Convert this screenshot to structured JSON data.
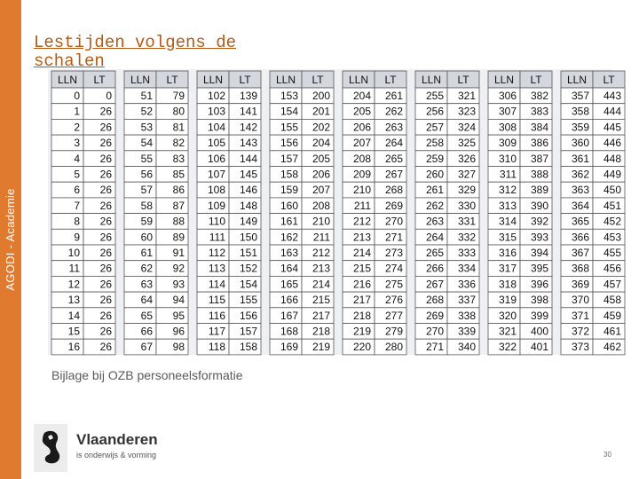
{
  "sidebar": {
    "text": "AGODI - Academie"
  },
  "title": "Lestijden volgens de schalen",
  "table": {
    "header": [
      "LLN",
      "LT"
    ],
    "blocks": [
      [
        [
          0,
          0
        ],
        [
          1,
          26
        ],
        [
          2,
          26
        ],
        [
          3,
          26
        ],
        [
          4,
          26
        ],
        [
          5,
          26
        ],
        [
          6,
          26
        ],
        [
          7,
          26
        ],
        [
          8,
          26
        ],
        [
          9,
          26
        ],
        [
          10,
          26
        ],
        [
          11,
          26
        ],
        [
          12,
          26
        ],
        [
          13,
          26
        ],
        [
          14,
          26
        ],
        [
          15,
          26
        ],
        [
          16,
          26
        ]
      ],
      [
        [
          51,
          79
        ],
        [
          52,
          80
        ],
        [
          53,
          81
        ],
        [
          54,
          82
        ],
        [
          55,
          83
        ],
        [
          56,
          85
        ],
        [
          57,
          86
        ],
        [
          58,
          87
        ],
        [
          59,
          88
        ],
        [
          60,
          89
        ],
        [
          61,
          91
        ],
        [
          62,
          92
        ],
        [
          63,
          93
        ],
        [
          64,
          94
        ],
        [
          65,
          95
        ],
        [
          66,
          96
        ],
        [
          67,
          98
        ]
      ],
      [
        [
          102,
          139
        ],
        [
          103,
          141
        ],
        [
          104,
          142
        ],
        [
          105,
          143
        ],
        [
          106,
          144
        ],
        [
          107,
          145
        ],
        [
          108,
          146
        ],
        [
          109,
          148
        ],
        [
          110,
          149
        ],
        [
          111,
          150
        ],
        [
          112,
          151
        ],
        [
          113,
          152
        ],
        [
          114,
          154
        ],
        [
          115,
          155
        ],
        [
          116,
          156
        ],
        [
          117,
          157
        ],
        [
          118,
          158
        ]
      ],
      [
        [
          153,
          200
        ],
        [
          154,
          201
        ],
        [
          155,
          202
        ],
        [
          156,
          204
        ],
        [
          157,
          205
        ],
        [
          158,
          206
        ],
        [
          159,
          207
        ],
        [
          160,
          208
        ],
        [
          161,
          210
        ],
        [
          162,
          211
        ],
        [
          163,
          212
        ],
        [
          164,
          213
        ],
        [
          165,
          214
        ],
        [
          166,
          215
        ],
        [
          167,
          217
        ],
        [
          168,
          218
        ],
        [
          169,
          219
        ]
      ],
      [
        [
          204,
          261
        ],
        [
          205,
          262
        ],
        [
          206,
          263
        ],
        [
          207,
          264
        ],
        [
          208,
          265
        ],
        [
          209,
          267
        ],
        [
          210,
          268
        ],
        [
          211,
          269
        ],
        [
          212,
          270
        ],
        [
          213,
          271
        ],
        [
          214,
          273
        ],
        [
          215,
          274
        ],
        [
          216,
          275
        ],
        [
          217,
          276
        ],
        [
          218,
          277
        ],
        [
          219,
          279
        ],
        [
          220,
          280
        ]
      ],
      [
        [
          255,
          321
        ],
        [
          256,
          323
        ],
        [
          257,
          324
        ],
        [
          258,
          325
        ],
        [
          259,
          326
        ],
        [
          260,
          327
        ],
        [
          261,
          329
        ],
        [
          262,
          330
        ],
        [
          263,
          331
        ],
        [
          264,
          332
        ],
        [
          265,
          333
        ],
        [
          266,
          334
        ],
        [
          267,
          336
        ],
        [
          268,
          337
        ],
        [
          269,
          338
        ],
        [
          270,
          339
        ],
        [
          271,
          340
        ]
      ],
      [
        [
          306,
          382
        ],
        [
          307,
          383
        ],
        [
          308,
          384
        ],
        [
          309,
          386
        ],
        [
          310,
          387
        ],
        [
          311,
          388
        ],
        [
          312,
          389
        ],
        [
          313,
          390
        ],
        [
          314,
          392
        ],
        [
          315,
          393
        ],
        [
          316,
          394
        ],
        [
          317,
          395
        ],
        [
          318,
          396
        ],
        [
          319,
          398
        ],
        [
          320,
          399
        ],
        [
          321,
          400
        ],
        [
          322,
          401
        ]
      ],
      [
        [
          357,
          443
        ],
        [
          358,
          444
        ],
        [
          359,
          445
        ],
        [
          360,
          446
        ],
        [
          361,
          448
        ],
        [
          362,
          449
        ],
        [
          363,
          450
        ],
        [
          364,
          451
        ],
        [
          365,
          452
        ],
        [
          366,
          453
        ],
        [
          367,
          455
        ],
        [
          368,
          456
        ],
        [
          369,
          457
        ],
        [
          370,
          458
        ],
        [
          371,
          459
        ],
        [
          372,
          461
        ],
        [
          373,
          462
        ]
      ]
    ]
  },
  "caption": "Bijlage bij OZB personeelsformatie",
  "logo": {
    "name": "Vlaanderen",
    "tagline": "is onderwijs & vorming"
  },
  "page_number": "30",
  "colors": {
    "sidebar": "#e07a2e",
    "title": "#b35a17",
    "header_bg": "#d4d8de",
    "table_bg": "#eef0f3"
  }
}
